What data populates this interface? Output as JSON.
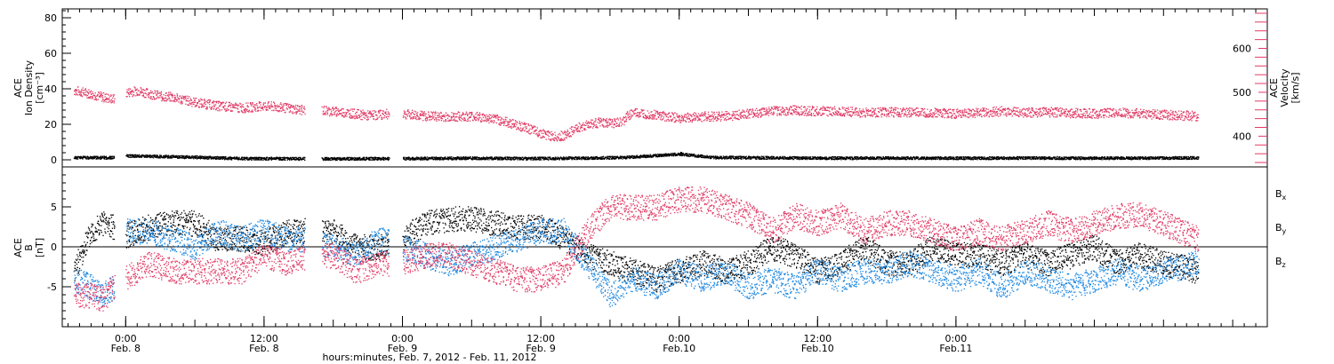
{
  "colors": {
    "black": "#000000",
    "blue": "#1a86e0",
    "red": "#e03a64"
  },
  "chart_data": [
    {
      "type": "scatter",
      "panel": "top",
      "ylabel_left_lines": [
        "ACE",
        "Ion Density",
        "[cm⁻³]"
      ],
      "ylabel_right_lines": [
        "ACE",
        "Velocity",
        "[km/s]"
      ],
      "ylim_left": [
        -4,
        85
      ],
      "ylim_right": [
        330,
        690
      ],
      "left_ticks": [
        0,
        20,
        40,
        60,
        80
      ],
      "left_tick_labels": [
        "0",
        "20",
        "40",
        "60",
        "80"
      ],
      "right_ticks": [
        400,
        500,
        600
      ],
      "right_tick_labels": [
        "400",
        "500",
        "600"
      ],
      "series": [
        {
          "axis": "left",
          "color_key": "black",
          "points": [
            [
              -4.5,
              1.5
            ],
            [
              -1,
              1.5
            ],
            [
              0,
              2.5
            ],
            [
              4,
              2.0
            ],
            [
              10,
              1.0
            ],
            [
              14,
              0.9
            ],
            [
              18,
              0.8
            ],
            [
              24,
              1.0
            ],
            [
              30,
              1.2
            ],
            [
              36,
              1.0
            ],
            [
              43,
              1.5
            ],
            [
              48,
              3.5
            ],
            [
              51,
              1.6
            ],
            [
              56,
              1.4
            ],
            [
              62,
              1.2
            ],
            [
              66,
              1.3
            ],
            [
              72,
              1.2
            ],
            [
              78,
              1.3
            ],
            [
              84,
              1.2
            ],
            [
              90,
              1.3
            ],
            [
              93,
              1.4
            ]
          ]
        },
        {
          "axis": "right",
          "color_key": "red",
          "points": [
            [
              -4.5,
              505
            ],
            [
              -3.5,
              500
            ],
            [
              -2,
              490
            ],
            [
              -1,
              485
            ],
            [
              0,
              500
            ],
            [
              1,
              505
            ],
            [
              2,
              498
            ],
            [
              3,
              492
            ],
            [
              4,
              490
            ],
            [
              6,
              478
            ],
            [
              8,
              470
            ],
            [
              10,
              465
            ],
            [
              12,
              470
            ],
            [
              14,
              465
            ],
            [
              15.5,
              460
            ],
            [
              17,
              460
            ],
            [
              19,
              455
            ],
            [
              21,
              448
            ],
            [
              22.8,
              452
            ],
            [
              24,
              452
            ],
            [
              26,
              447
            ],
            [
              28,
              445
            ],
            [
              30,
              447
            ],
            [
              32,
              440
            ],
            [
              34,
              426
            ],
            [
              36,
              408
            ],
            [
              37,
              400
            ],
            [
              38,
              402
            ],
            [
              39,
              418
            ],
            [
              40,
              428
            ],
            [
              41,
              432
            ],
            [
              42,
              430
            ],
            [
              43,
              432
            ],
            [
              43.5,
              448
            ],
            [
              44,
              455
            ],
            [
              46,
              450
            ],
            [
              48,
              442
            ],
            [
              50,
              446
            ],
            [
              52,
              447
            ],
            [
              54,
              452
            ],
            [
              56,
              458
            ],
            [
              58,
              460
            ],
            [
              60,
              458
            ],
            [
              62,
              458
            ],
            [
              64,
              454
            ],
            [
              66,
              456
            ],
            [
              68,
              455
            ],
            [
              70,
              454
            ],
            [
              72,
              452
            ],
            [
              74,
              455
            ],
            [
              76,
              458
            ],
            [
              78,
              455
            ],
            [
              80,
              456
            ],
            [
              82,
              454
            ],
            [
              84,
              452
            ],
            [
              86,
              455
            ],
            [
              88,
              452
            ],
            [
              90,
              450
            ],
            [
              93,
              447
            ]
          ]
        }
      ]
    },
    {
      "type": "scatter",
      "panel": "bottom",
      "ylabel_left_lines": [
        "ACE",
        "B",
        "[nT]"
      ],
      "ylim": [
        -10,
        10
      ],
      "left_ticks": [
        -5,
        0,
        5
      ],
      "left_tick_labels": [
        "-5",
        "0",
        "5"
      ],
      "legend_right_labels": [
        {
          "text": "B",
          "sub": "x",
          "color_key": "black"
        },
        {
          "text": "B",
          "sub": "y",
          "color_key": "blue"
        },
        {
          "text": "B",
          "sub": "z",
          "color_key": "red"
        }
      ],
      "series": [
        {
          "name": "Bx",
          "color_key": "black",
          "points": [
            [
              -4.5,
              -3
            ],
            [
              -3,
              2
            ],
            [
              -2,
              3
            ],
            [
              -1,
              2.5
            ],
            [
              0,
              1.5
            ],
            [
              2,
              2.5
            ],
            [
              4,
              3
            ],
            [
              6,
              3
            ],
            [
              8,
              1
            ],
            [
              10,
              1
            ],
            [
              12,
              0.5
            ],
            [
              14,
              2
            ],
            [
              16,
              2
            ],
            [
              18,
              2
            ],
            [
              20,
              0
            ],
            [
              22,
              0
            ],
            [
              24,
              1
            ],
            [
              26,
              3
            ],
            [
              28,
              3.5
            ],
            [
              30,
              3.5
            ],
            [
              32,
              3
            ],
            [
              34,
              2.5
            ],
            [
              36,
              2.5
            ],
            [
              38,
              1
            ],
            [
              40,
              -1
            ],
            [
              42,
              -2
            ],
            [
              44,
              -3
            ],
            [
              46,
              -4
            ],
            [
              48,
              -3
            ],
            [
              50,
              -2
            ],
            [
              52,
              -3
            ],
            [
              54,
              -2
            ],
            [
              56,
              0
            ],
            [
              58,
              -1
            ],
            [
              60,
              -3
            ],
            [
              62,
              -2
            ],
            [
              64,
              0
            ],
            [
              66,
              -2
            ],
            [
              68,
              -2
            ],
            [
              70,
              0
            ],
            [
              72,
              -1
            ],
            [
              74,
              -1
            ],
            [
              76,
              -2
            ],
            [
              78,
              -1
            ],
            [
              80,
              -2
            ],
            [
              82,
              -1
            ],
            [
              84,
              0
            ],
            [
              86,
              -2
            ],
            [
              88,
              -1
            ],
            [
              90,
              -2
            ],
            [
              93,
              -3
            ]
          ]
        },
        {
          "name": "By",
          "color_key": "blue",
          "points": [
            [
              -4.5,
              -4
            ],
            [
              -3,
              -5
            ],
            [
              -2,
              -6
            ],
            [
              -1,
              -5
            ],
            [
              0,
              2
            ],
            [
              2,
              2
            ],
            [
              4,
              1
            ],
            [
              6,
              0
            ],
            [
              8,
              2
            ],
            [
              10,
              1
            ],
            [
              12,
              2
            ],
            [
              14,
              1
            ],
            [
              16,
              1
            ],
            [
              18,
              0
            ],
            [
              20,
              -1
            ],
            [
              22,
              1
            ],
            [
              24,
              0
            ],
            [
              26,
              -1
            ],
            [
              28,
              -2
            ],
            [
              30,
              -1
            ],
            [
              32,
              0
            ],
            [
              34,
              1
            ],
            [
              36,
              2
            ],
            [
              38,
              2
            ],
            [
              40,
              -2
            ],
            [
              42,
              -6
            ],
            [
              44,
              -4
            ],
            [
              46,
              -5
            ],
            [
              48,
              -3
            ],
            [
              50,
              -4
            ],
            [
              52,
              -3
            ],
            [
              54,
              -5
            ],
            [
              56,
              -4
            ],
            [
              58,
              -5
            ],
            [
              60,
              -3
            ],
            [
              62,
              -4
            ],
            [
              64,
              -3
            ],
            [
              66,
              -3
            ],
            [
              68,
              -2
            ],
            [
              70,
              -3
            ],
            [
              72,
              -4
            ],
            [
              74,
              -3
            ],
            [
              76,
              -5
            ],
            [
              78,
              -3
            ],
            [
              80,
              -4
            ],
            [
              82,
              -5
            ],
            [
              84,
              -4
            ],
            [
              86,
              -3
            ],
            [
              88,
              -4
            ],
            [
              90,
              -3
            ],
            [
              93,
              -2
            ]
          ]
        },
        {
          "name": "Bz",
          "color_key": "red",
          "points": [
            [
              -4.5,
              -6
            ],
            [
              -3,
              -6
            ],
            [
              -2,
              -6.5
            ],
            [
              -1,
              -5
            ],
            [
              0,
              -4
            ],
            [
              2,
              -2
            ],
            [
              4,
              -3
            ],
            [
              6,
              -3
            ],
            [
              8,
              -3
            ],
            [
              10,
              -3
            ],
            [
              12,
              -1
            ],
            [
              14,
              -2
            ],
            [
              16,
              -1
            ],
            [
              18,
              -1
            ],
            [
              20,
              -3
            ],
            [
              22,
              -2
            ],
            [
              24,
              -2
            ],
            [
              26,
              -1
            ],
            [
              28,
              -1
            ],
            [
              30,
              -2
            ],
            [
              32,
              -3
            ],
            [
              34,
              -4
            ],
            [
              36,
              -4
            ],
            [
              38,
              -3
            ],
            [
              40,
              2
            ],
            [
              42,
              5
            ],
            [
              44,
              5
            ],
            [
              46,
              5
            ],
            [
              48,
              6
            ],
            [
              50,
              6
            ],
            [
              52,
              5
            ],
            [
              54,
              4
            ],
            [
              56,
              2
            ],
            [
              58,
              4
            ],
            [
              60,
              3
            ],
            [
              62,
              4
            ],
            [
              64,
              2
            ],
            [
              66,
              3
            ],
            [
              68,
              3
            ],
            [
              70,
              2
            ],
            [
              72,
              1
            ],
            [
              74,
              2
            ],
            [
              76,
              1
            ],
            [
              78,
              2
            ],
            [
              80,
              3
            ],
            [
              82,
              2
            ],
            [
              84,
              3
            ],
            [
              86,
              4
            ],
            [
              88,
              4
            ],
            [
              90,
              3
            ],
            [
              93,
              1
            ]
          ]
        }
      ]
    }
  ],
  "x_axis": {
    "xlim": [
      -5.5,
      99
    ],
    "ticks": [
      {
        "hour": 0,
        "line1": "0:00",
        "line2": "Feb. 8"
      },
      {
        "hour": 12,
        "line1": "12:00",
        "line2": "Feb. 8"
      },
      {
        "hour": 24,
        "line1": "0:00",
        "line2": "Feb. 9"
      },
      {
        "hour": 36,
        "line1": "12:00",
        "line2": "Feb. 9"
      },
      {
        "hour": 48,
        "line1": "0:00",
        "line2": "Feb.10"
      },
      {
        "hour": 60,
        "line1": "12:00",
        "line2": "Feb.10"
      },
      {
        "hour": 72,
        "line1": "0:00",
        "line2": "Feb.11"
      }
    ],
    "label": "hours:minutes, Feb.  7, 2012 - Feb. 11, 2012"
  }
}
